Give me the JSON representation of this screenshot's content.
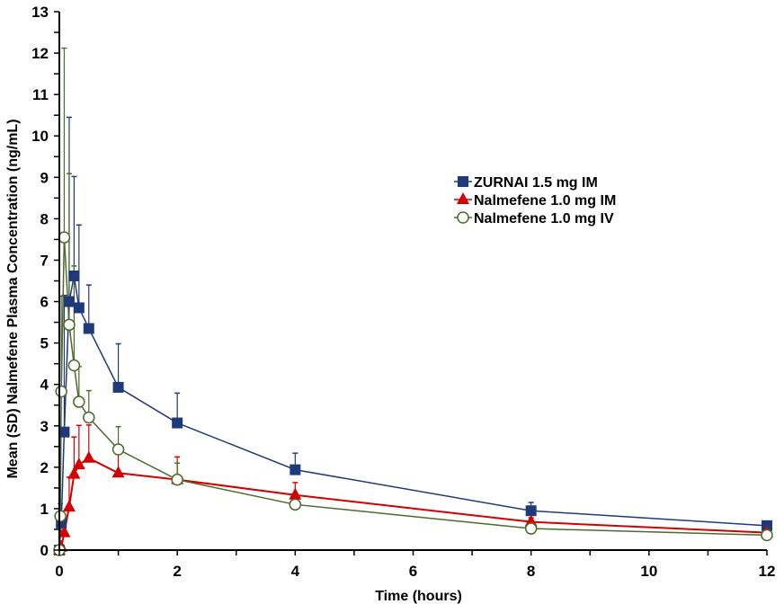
{
  "chart_data": {
    "type": "line",
    "title": "",
    "xlabel": "Time (hours)",
    "ylabel": "Mean (SD) Nalmefene Plasma Concentration (ng/mL)",
    "xlim": [
      0,
      12
    ],
    "ylim": [
      0,
      13
    ],
    "x_ticks": [
      0,
      2,
      4,
      6,
      8,
      10,
      12
    ],
    "x_minor_step": 1,
    "y_ticks": [
      0,
      1,
      2,
      3,
      4,
      5,
      6,
      7,
      8,
      9,
      10,
      11,
      12,
      13
    ],
    "y_minor_step": 0.5,
    "grid": false,
    "legend_position": "upper-right",
    "series": [
      {
        "name": "ZURNAI 1.5 mg IM",
        "color": "#1f3a7a",
        "marker": "square-filled",
        "x": [
          0,
          0.033,
          0.083,
          0.167,
          0.25,
          0.333,
          0.5,
          1,
          2,
          4,
          8,
          12
        ],
        "y": [
          0,
          0.65,
          2.85,
          6.0,
          6.62,
          5.85,
          5.35,
          3.93,
          3.07,
          1.94,
          0.95,
          0.59
        ],
        "sd": [
          0,
          0.2,
          3.3,
          4.45,
          2.4,
          2.0,
          1.05,
          1.05,
          0.72,
          0.4,
          0.2,
          0
        ]
      },
      {
        "name": "Nalmefene 1.0 mg IM",
        "color": "#d40000",
        "marker": "triangle-filled",
        "x": [
          0,
          0.033,
          0.083,
          0.167,
          0.25,
          0.333,
          0.5,
          1,
          2,
          4,
          8,
          12
        ],
        "y": [
          0,
          0.07,
          0.42,
          1.04,
          1.83,
          2.06,
          2.22,
          1.86,
          1.7,
          1.33,
          0.68,
          0.42
        ],
        "sd": [
          0,
          0.05,
          0.3,
          0.72,
          0.9,
          0.95,
          0.8,
          0.45,
          0.55,
          0.3,
          0.1,
          0
        ]
      },
      {
        "name": "Nalmefene 1.0 mg IV",
        "color": "#4a6b2a",
        "marker": "circle-open",
        "x": [
          0,
          0.017,
          0.033,
          0.083,
          0.167,
          0.25,
          0.333,
          0.5,
          1,
          2,
          4,
          8,
          12
        ],
        "y": [
          0,
          0.82,
          3.83,
          7.55,
          5.44,
          4.46,
          3.58,
          3.2,
          2.43,
          1.7,
          1.1,
          0.52,
          0.36
        ],
        "sd": [
          0,
          0.3,
          2.3,
          4.57,
          3.65,
          2.4,
          0.85,
          0.65,
          0.55,
          0.4,
          0,
          0,
          0
        ]
      }
    ]
  }
}
